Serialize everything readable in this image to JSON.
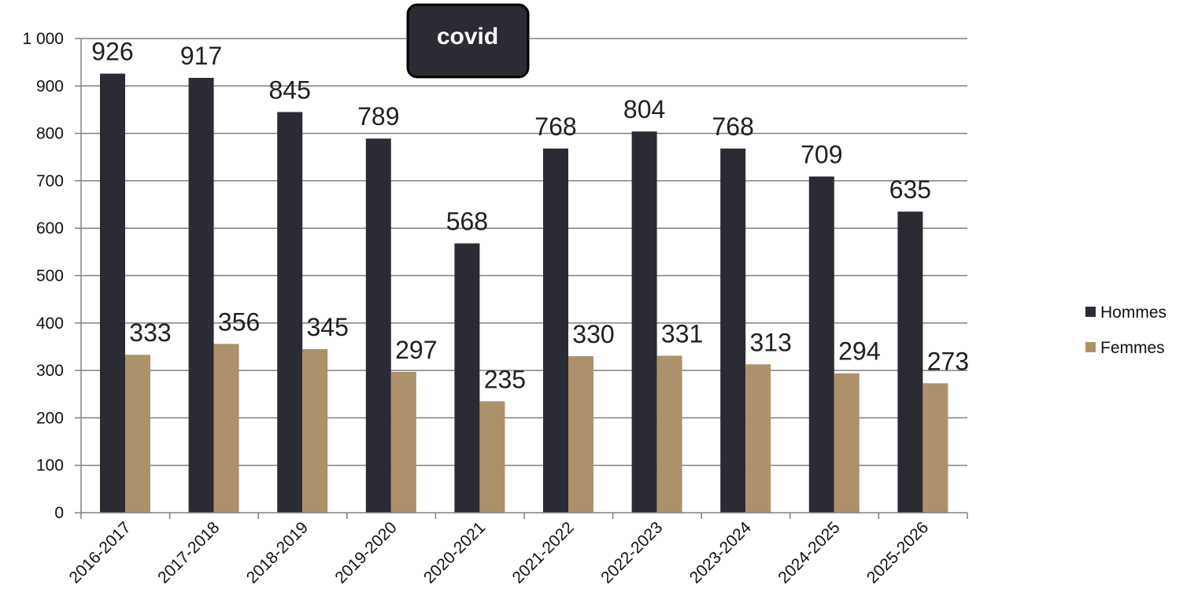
{
  "chart_data": {
    "type": "bar",
    "categories": [
      "2016-2017",
      "2017-2018",
      "2018-2019",
      "2019-2020",
      "2020-2021",
      "2021-2022",
      "2022-2023",
      "2023-2024",
      "2024-2025",
      "2025-2026"
    ],
    "series": [
      {
        "name": "Hommes",
        "color": "#2b2b33",
        "values": [
          926,
          917,
          845,
          789,
          568,
          768,
          804,
          768,
          709,
          635
        ]
      },
      {
        "name": "Femmes",
        "color": "#ad916a",
        "values": [
          333,
          356,
          345,
          297,
          235,
          330,
          331,
          313,
          294,
          273
        ]
      }
    ],
    "ylim": [
      0,
      1000
    ],
    "yticks": [
      0,
      100,
      200,
      300,
      400,
      500,
      600,
      700,
      800,
      900,
      1000
    ],
    "ytick_labels": [
      "0",
      "100",
      "200",
      "300",
      "400",
      "500",
      "600",
      "700",
      "800",
      "900",
      "1 000"
    ],
    "grid": true,
    "legend_position": "right",
    "annotation": {
      "text": "covid"
    },
    "title": "",
    "xlabel": "",
    "ylabel": ""
  }
}
